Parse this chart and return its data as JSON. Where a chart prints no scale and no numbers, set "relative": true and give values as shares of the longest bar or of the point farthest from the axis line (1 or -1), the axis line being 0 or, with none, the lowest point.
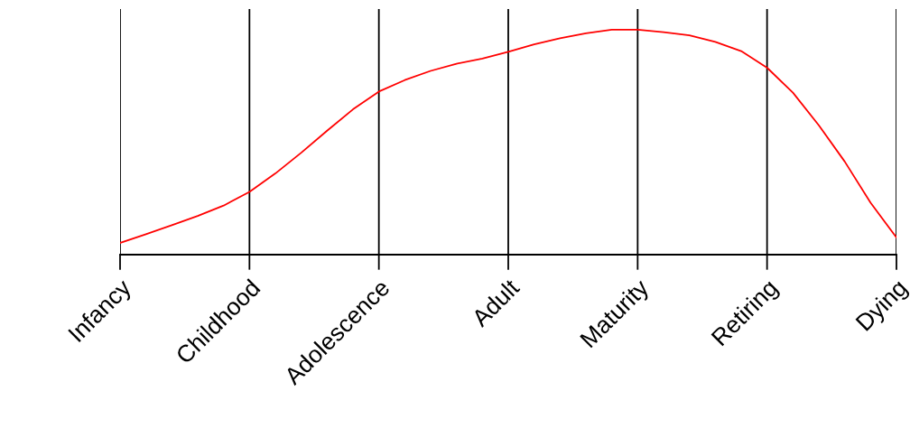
{
  "chart_data": {
    "type": "line",
    "relative": true,
    "grid": "x",
    "categories": [
      "Infancy",
      null,
      null,
      null,
      null,
      "Childhood",
      null,
      null,
      null,
      null,
      "Adolescence",
      null,
      null,
      null,
      null,
      "Adult",
      null,
      null,
      null,
      null,
      "Maturity",
      null,
      null,
      null,
      null,
      "Retiring",
      null,
      null,
      null,
      null,
      "Dying"
    ],
    "series": [
      {
        "color": "#ff0000",
        "values": [
          0.052,
          0.091,
          0.131,
          0.172,
          0.218,
          0.279,
          0.361,
          0.453,
          0.551,
          0.646,
          0.725,
          0.776,
          0.817,
          0.849,
          0.872,
          0.902,
          0.935,
          0.962,
          0.984,
          1.0,
          1.0,
          0.989,
          0.975,
          0.946,
          0.905,
          0.831,
          0.72,
          0.575,
          0.414,
          0.231,
          0.076
        ]
      }
    ]
  }
}
